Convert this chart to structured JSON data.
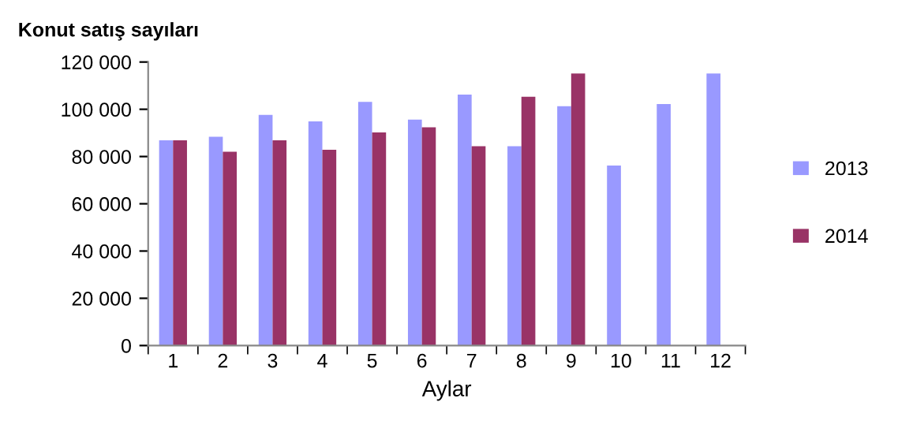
{
  "chart_data": {
    "type": "bar",
    "title": "Konut satış sayıları",
    "xlabel": "Aylar",
    "categories": [
      "1",
      "2",
      "3",
      "4",
      "5",
      "6",
      "7",
      "8",
      "9",
      "10",
      "11",
      "12"
    ],
    "series": [
      {
        "name": "2013",
        "color": "#9999ff",
        "values": [
          86900,
          88400,
          97600,
          94900,
          103100,
          95600,
          106200,
          84400,
          101300,
          76200,
          102200,
          115100
        ]
      },
      {
        "name": "2014",
        "color": "#993366",
        "values": [
          86900,
          82000,
          86900,
          82900,
          90200,
          92400,
          84400,
          105300,
          115100,
          null,
          null,
          null
        ]
      }
    ],
    "ylim": [
      0,
      120000
    ],
    "yticks": [
      {
        "value": 0,
        "label": "0"
      },
      {
        "value": 20000,
        "label": "20 000"
      },
      {
        "value": 40000,
        "label": "40 000"
      },
      {
        "value": 60000,
        "label": "60 000"
      },
      {
        "value": 80000,
        "label": "80 000"
      },
      {
        "value": 100000,
        "label": "100 000"
      },
      {
        "value": 120000,
        "label": "120 000"
      }
    ],
    "grid": false,
    "legend": "right"
  }
}
